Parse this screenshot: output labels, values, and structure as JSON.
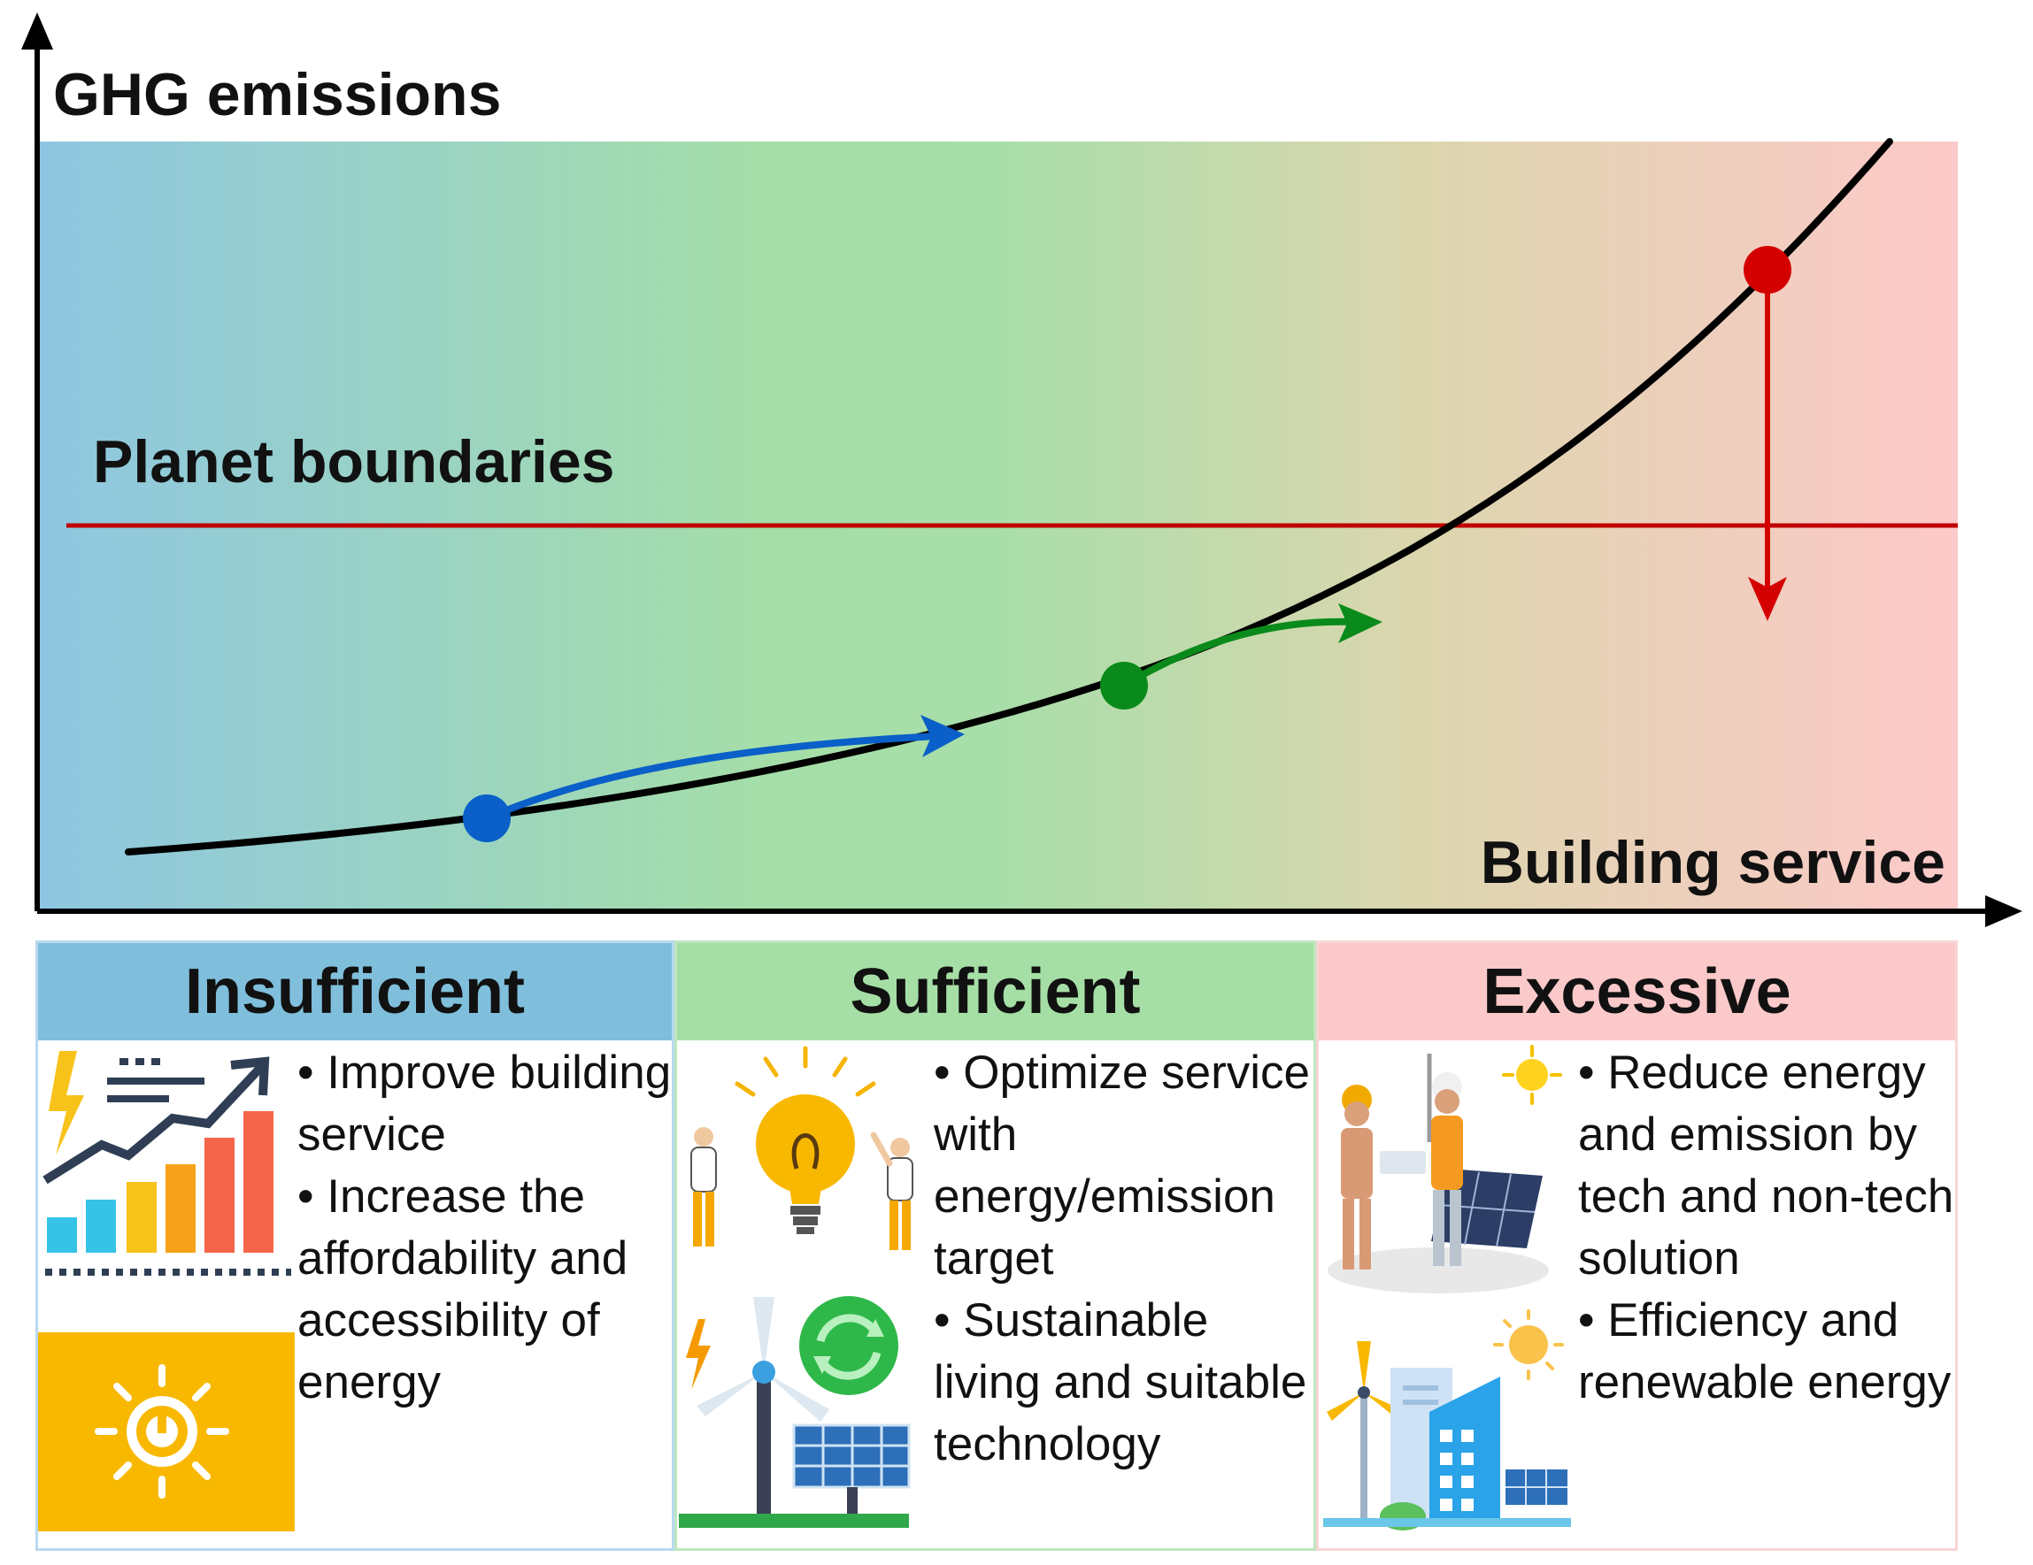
{
  "diagram": {
    "y_axis_label": "GHG emissions",
    "x_axis_label": "Building service",
    "boundary_label": "Planet boundaries",
    "colors": {
      "insufficient": "#7fbfdc",
      "sufficient": "#a6dfa6",
      "excessive": "#fbc9c9",
      "curve": "#000000",
      "boundary_line": "#c00000",
      "point_insufficient": "#0a5fc8",
      "point_sufficient": "#0a8a1a",
      "point_excessive": "#d40000"
    }
  },
  "panels": [
    {
      "title": "Insufficient",
      "bullets": [
        "Improve building service",
        "Increase the affordability and accessibility of energy"
      ],
      "icons": [
        "growth-bar-chart-icon",
        "solar-power-icon"
      ]
    },
    {
      "title": "Sufficient",
      "bullets": [
        "Optimize service with energy/emission target",
        "Sustainable living and suitable technology"
      ],
      "icons": [
        "lightbulb-idea-icon",
        "wind-solar-renewable-icon"
      ]
    },
    {
      "title": "Excessive",
      "bullets": [
        "Reduce energy and emission by tech and non-tech solution",
        "Efficiency and renewable energy"
      ],
      "icons": [
        "solar-workers-icon",
        "green-city-icon"
      ]
    }
  ]
}
